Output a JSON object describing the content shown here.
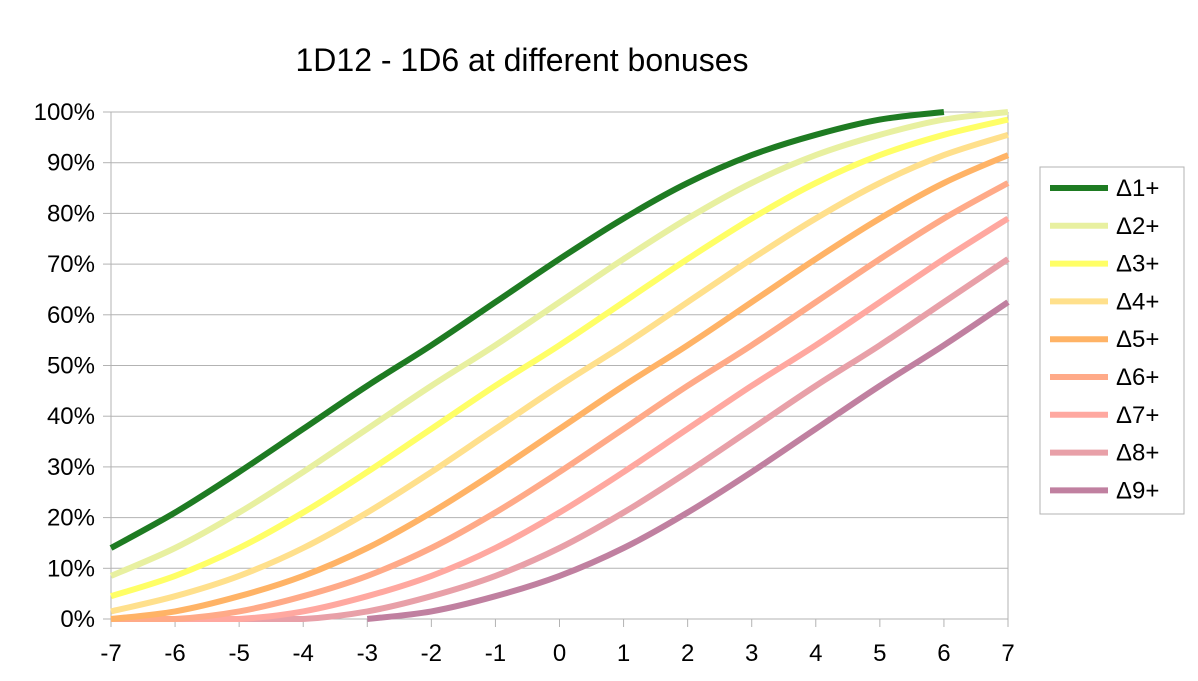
{
  "chart_data": {
    "type": "line",
    "title": "1D12 - 1D6 at different bonuses",
    "xlabel": "",
    "ylabel": "",
    "xlim": [
      -7,
      7
    ],
    "ylim": [
      0,
      1
    ],
    "x": [
      -7,
      -6,
      -5,
      -4,
      -3,
      -2,
      -1,
      0,
      1,
      2,
      3,
      4,
      5,
      6,
      7
    ],
    "x_tick_labels": [
      "-7",
      "-6",
      "-5",
      "-4",
      "-3",
      "-2",
      "-1",
      "0",
      "1",
      "2",
      "3",
      "4",
      "5",
      "6",
      "7"
    ],
    "y_tick_labels": [
      "0%",
      "10%",
      "20%",
      "30%",
      "40%",
      "50%",
      "60%",
      "70%",
      "80%",
      "90%",
      "100%"
    ],
    "grid": "horizontal",
    "legend_position": "right",
    "series": [
      {
        "name": "Δ1+",
        "color": "#1e7b22",
        "values": [
          0.14,
          0.21,
          0.29,
          0.375,
          0.46,
          0.54,
          0.625,
          0.71,
          0.79,
          0.86,
          0.915,
          0.955,
          0.985,
          1.0,
          null
        ]
      },
      {
        "name": "Δ2+",
        "color": "#e8f0a0",
        "values": [
          0.085,
          0.14,
          0.21,
          0.29,
          0.375,
          0.46,
          0.54,
          0.625,
          0.71,
          0.79,
          0.86,
          0.915,
          0.955,
          0.985,
          1.0
        ]
      },
      {
        "name": "Δ3+",
        "color": "#ffff66",
        "values": [
          0.045,
          0.085,
          0.14,
          0.21,
          0.29,
          0.375,
          0.46,
          0.54,
          0.625,
          0.71,
          0.79,
          0.86,
          0.915,
          0.955,
          0.985
        ]
      },
      {
        "name": "Δ4+",
        "color": "#ffe08c",
        "values": [
          0.015,
          0.045,
          0.085,
          0.14,
          0.21,
          0.29,
          0.375,
          0.46,
          0.54,
          0.625,
          0.71,
          0.79,
          0.86,
          0.915,
          0.955
        ]
      },
      {
        "name": "Δ5+",
        "color": "#ffb366",
        "values": [
          0.0,
          0.015,
          0.045,
          0.085,
          0.14,
          0.21,
          0.29,
          0.375,
          0.46,
          0.54,
          0.625,
          0.71,
          0.79,
          0.86,
          0.915
        ]
      },
      {
        "name": "Δ6+",
        "color": "#ffaa88",
        "values": [
          0.0,
          0.0,
          0.015,
          0.045,
          0.085,
          0.14,
          0.21,
          0.29,
          0.375,
          0.46,
          0.54,
          0.625,
          0.71,
          0.79,
          0.86
        ]
      },
      {
        "name": "Δ7+",
        "color": "#ffa8a0",
        "values": [
          0.0,
          0.0,
          0.0,
          0.015,
          0.045,
          0.085,
          0.14,
          0.21,
          0.29,
          0.375,
          0.46,
          0.54,
          0.625,
          0.71,
          0.79
        ]
      },
      {
        "name": "Δ8+",
        "color": "#e8a0a8",
        "values": [
          0.0,
          0.0,
          0.0,
          0.0,
          0.015,
          0.045,
          0.085,
          0.14,
          0.21,
          0.29,
          0.375,
          0.46,
          0.54,
          0.625,
          0.71
        ]
      },
      {
        "name": "Δ9+",
        "color": "#c080a0",
        "values": [
          null,
          null,
          null,
          null,
          0.0,
          0.015,
          0.045,
          0.085,
          0.14,
          0.21,
          0.29,
          0.375,
          0.46,
          0.54,
          0.625
        ]
      }
    ]
  }
}
